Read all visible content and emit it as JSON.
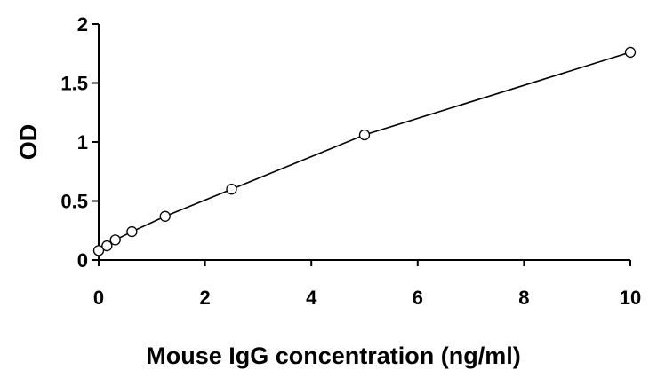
{
  "chart_data": {
    "type": "line",
    "title": "",
    "xlabel": "Mouse IgG concentration (ng/ml)",
    "ylabel": "OD",
    "xlim": [
      0,
      10
    ],
    "ylim": [
      0,
      2
    ],
    "xticks": [
      0,
      2,
      4,
      6,
      8,
      10
    ],
    "yticks": [
      0,
      0.5,
      1,
      1.5,
      2
    ],
    "xtick_labels": [
      "0",
      "2",
      "4",
      "6",
      "8",
      "10"
    ],
    "ytick_labels": [
      "0",
      "0.5",
      "1",
      "1.5",
      "2"
    ],
    "grid": false,
    "legend": "none",
    "series": [
      {
        "x": [
          0,
          0.156,
          0.313,
          0.625,
          1.25,
          2.5,
          5,
          10
        ],
        "y": [
          0.08,
          0.12,
          0.17,
          0.24,
          0.37,
          0.6,
          1.06,
          1.76
        ],
        "marker": "open-circle",
        "color": "#000000"
      }
    ]
  }
}
